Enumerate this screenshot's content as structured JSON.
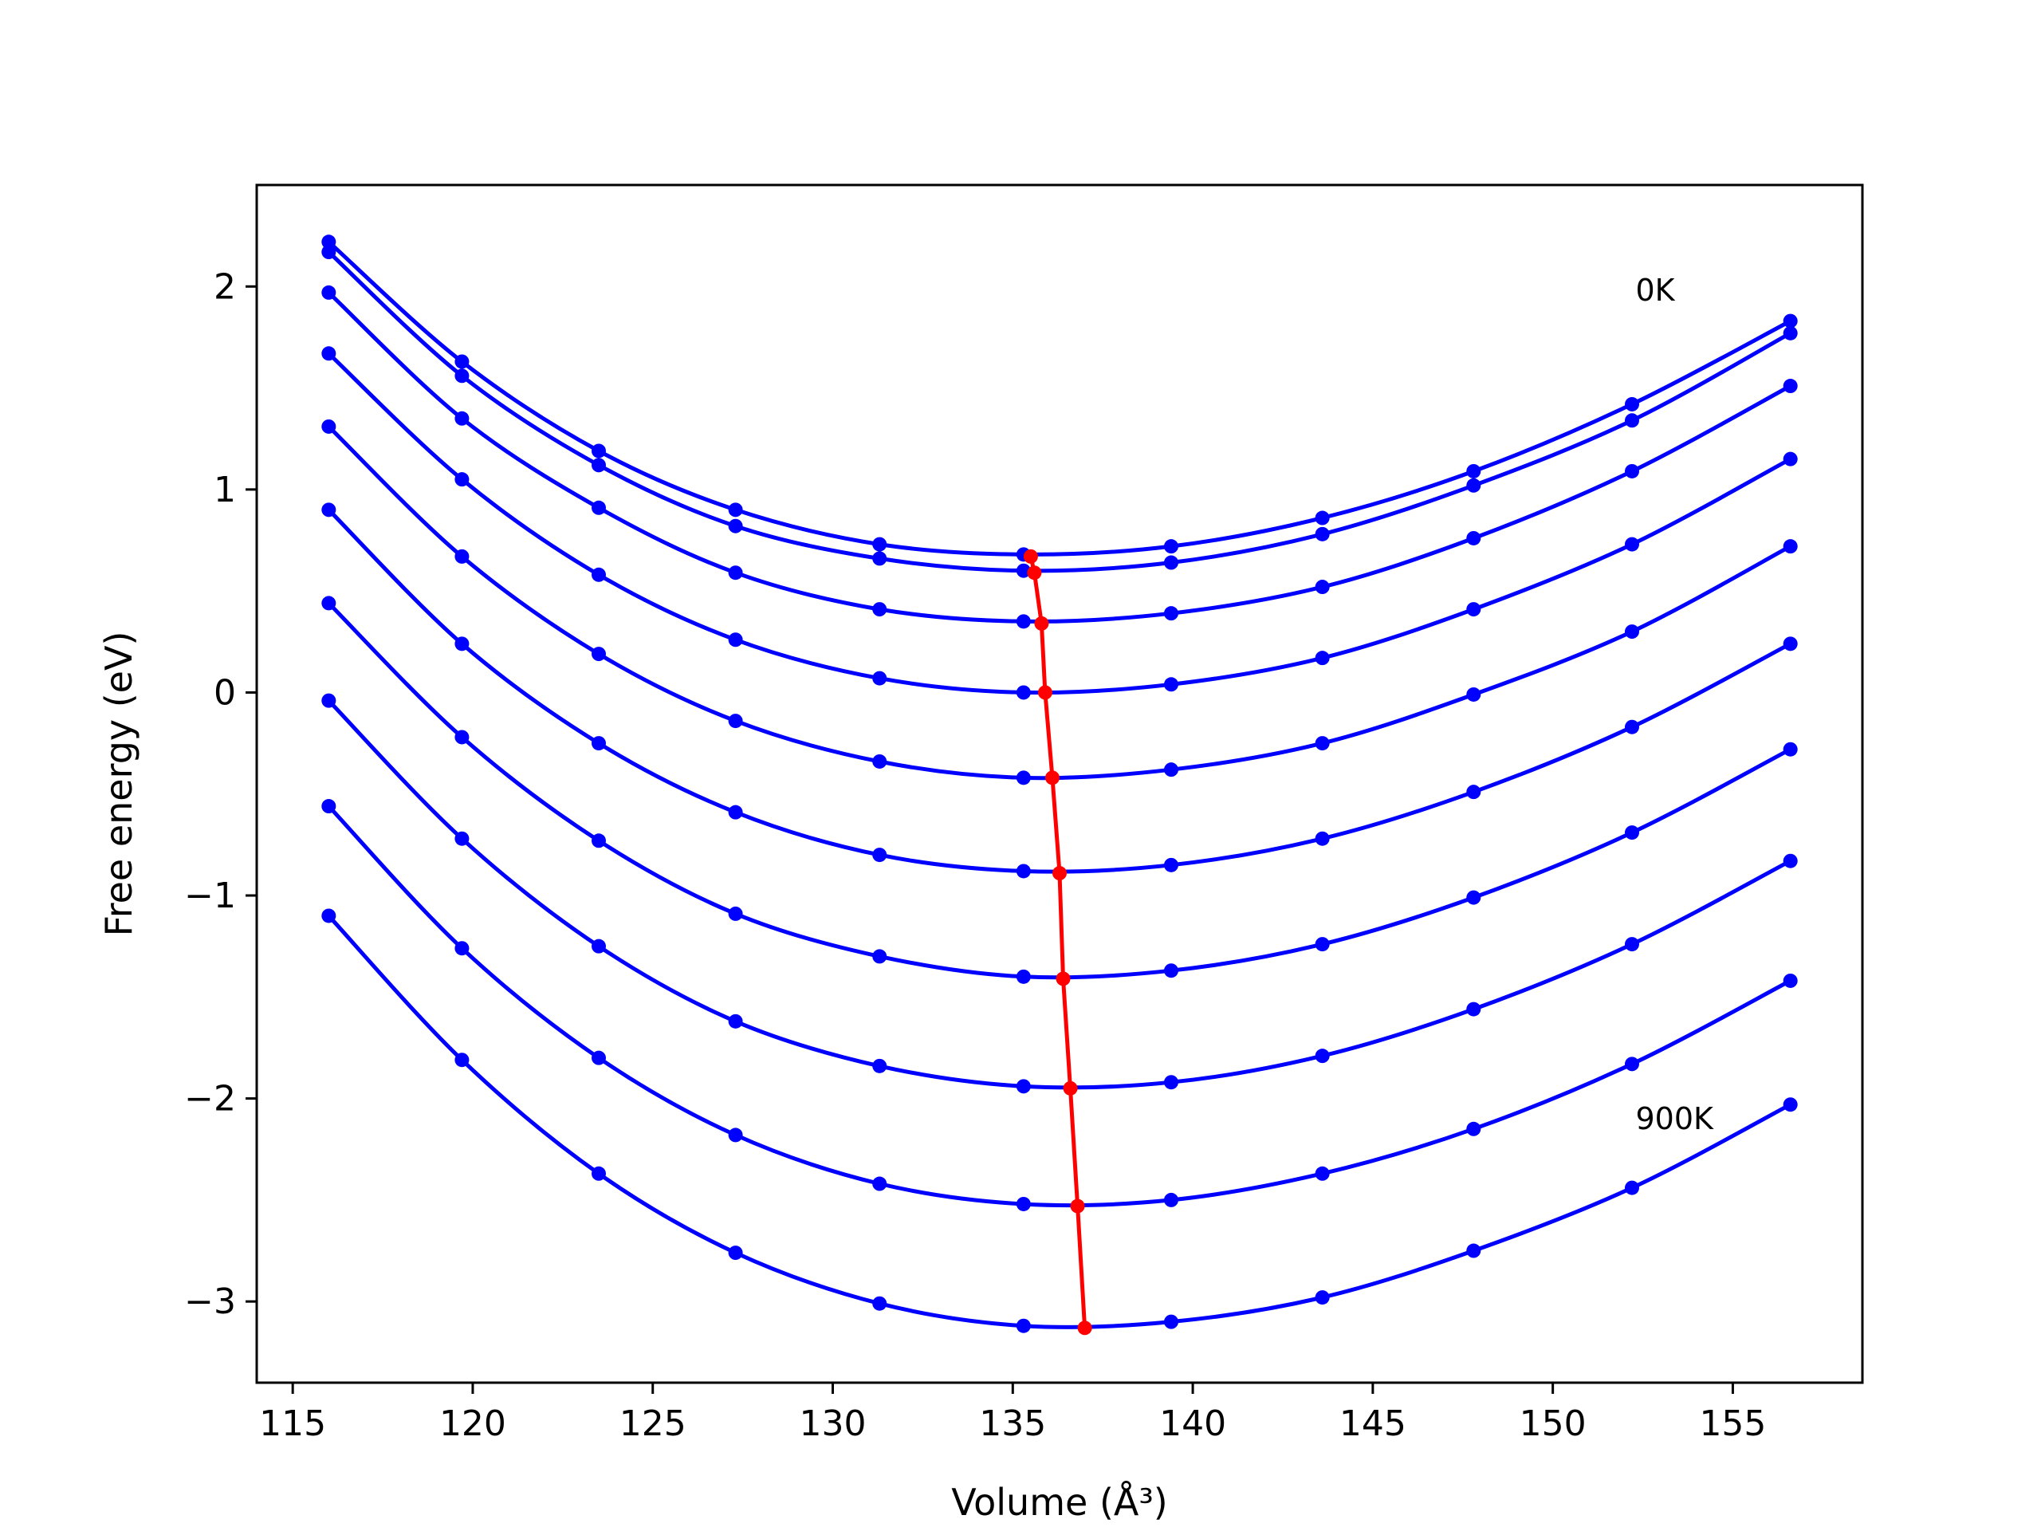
{
  "chart_data": {
    "type": "line",
    "title": "",
    "xlabel": "Volume (Å³)",
    "ylabel": "Free energy (eV)",
    "xlim": [
      114.0,
      158.6
    ],
    "ylim": [
      -3.4,
      2.5
    ],
    "xticks": [
      115,
      120,
      125,
      130,
      135,
      140,
      145,
      150,
      155
    ],
    "yticks": [
      -3,
      -2,
      -1,
      0,
      1,
      2
    ],
    "ytick_labels": [
      "−3",
      "−2",
      "−1",
      "0",
      "1",
      "2"
    ],
    "grid": false,
    "x": [
      116.0,
      119.7,
      123.5,
      127.3,
      131.3,
      135.3,
      139.4,
      143.6,
      147.8,
      152.2,
      156.6
    ],
    "series": [
      {
        "values": [
          2.22,
          1.63,
          1.19,
          0.9,
          0.73,
          0.68,
          0.72,
          0.86,
          1.09,
          1.42,
          1.83
        ],
        "color": "#0000ff"
      },
      {
        "values": [
          2.17,
          1.56,
          1.12,
          0.82,
          0.66,
          0.6,
          0.64,
          0.78,
          1.02,
          1.34,
          1.77
        ],
        "color": "#0000ff"
      },
      {
        "values": [
          1.97,
          1.35,
          0.91,
          0.59,
          0.41,
          0.35,
          0.39,
          0.52,
          0.76,
          1.09,
          1.51
        ],
        "color": "#0000ff"
      },
      {
        "values": [
          1.67,
          1.05,
          0.58,
          0.26,
          0.07,
          0.0,
          0.04,
          0.17,
          0.41,
          0.73,
          1.15
        ],
        "color": "#0000ff"
      },
      {
        "values": [
          1.31,
          0.67,
          0.19,
          -0.14,
          -0.34,
          -0.42,
          -0.38,
          -0.25,
          -0.01,
          0.3,
          0.72
        ],
        "color": "#0000ff"
      },
      {
        "values": [
          0.9,
          0.24,
          -0.25,
          -0.59,
          -0.8,
          -0.88,
          -0.85,
          -0.72,
          -0.49,
          -0.17,
          0.24
        ],
        "color": "#0000ff"
      },
      {
        "values": [
          0.44,
          -0.22,
          -0.73,
          -1.09,
          -1.3,
          -1.4,
          -1.37,
          -1.24,
          -1.01,
          -0.69,
          -0.28
        ],
        "color": "#0000ff"
      },
      {
        "values": [
          -0.04,
          -0.72,
          -1.25,
          -1.62,
          -1.84,
          -1.94,
          -1.92,
          -1.79,
          -1.56,
          -1.24,
          -0.83
        ],
        "color": "#0000ff"
      },
      {
        "values": [
          -0.56,
          -1.26,
          -1.8,
          -2.18,
          -2.42,
          -2.52,
          -2.5,
          -2.37,
          -2.15,
          -1.83,
          -1.42
        ],
        "color": "#0000ff"
      },
      {
        "values": [
          -1.1,
          -1.81,
          -2.37,
          -2.76,
          -3.01,
          -3.12,
          -3.1,
          -2.98,
          -2.75,
          -2.44,
          -2.03
        ],
        "color": "#0000ff"
      }
    ],
    "minima": {
      "color": "#ff0000",
      "x": [
        135.5,
        135.6,
        135.8,
        135.9,
        136.1,
        136.3,
        136.4,
        136.6,
        136.8,
        137.0
      ],
      "y": [
        0.67,
        0.59,
        0.34,
        0.0,
        -0.42,
        -0.89,
        -1.41,
        -1.95,
        -2.53,
        -3.13
      ]
    },
    "annotations": [
      {
        "text": "0K",
        "x": 152.3,
        "y": 1.93
      },
      {
        "text": "900K",
        "x": 152.3,
        "y": -2.15
      }
    ]
  }
}
